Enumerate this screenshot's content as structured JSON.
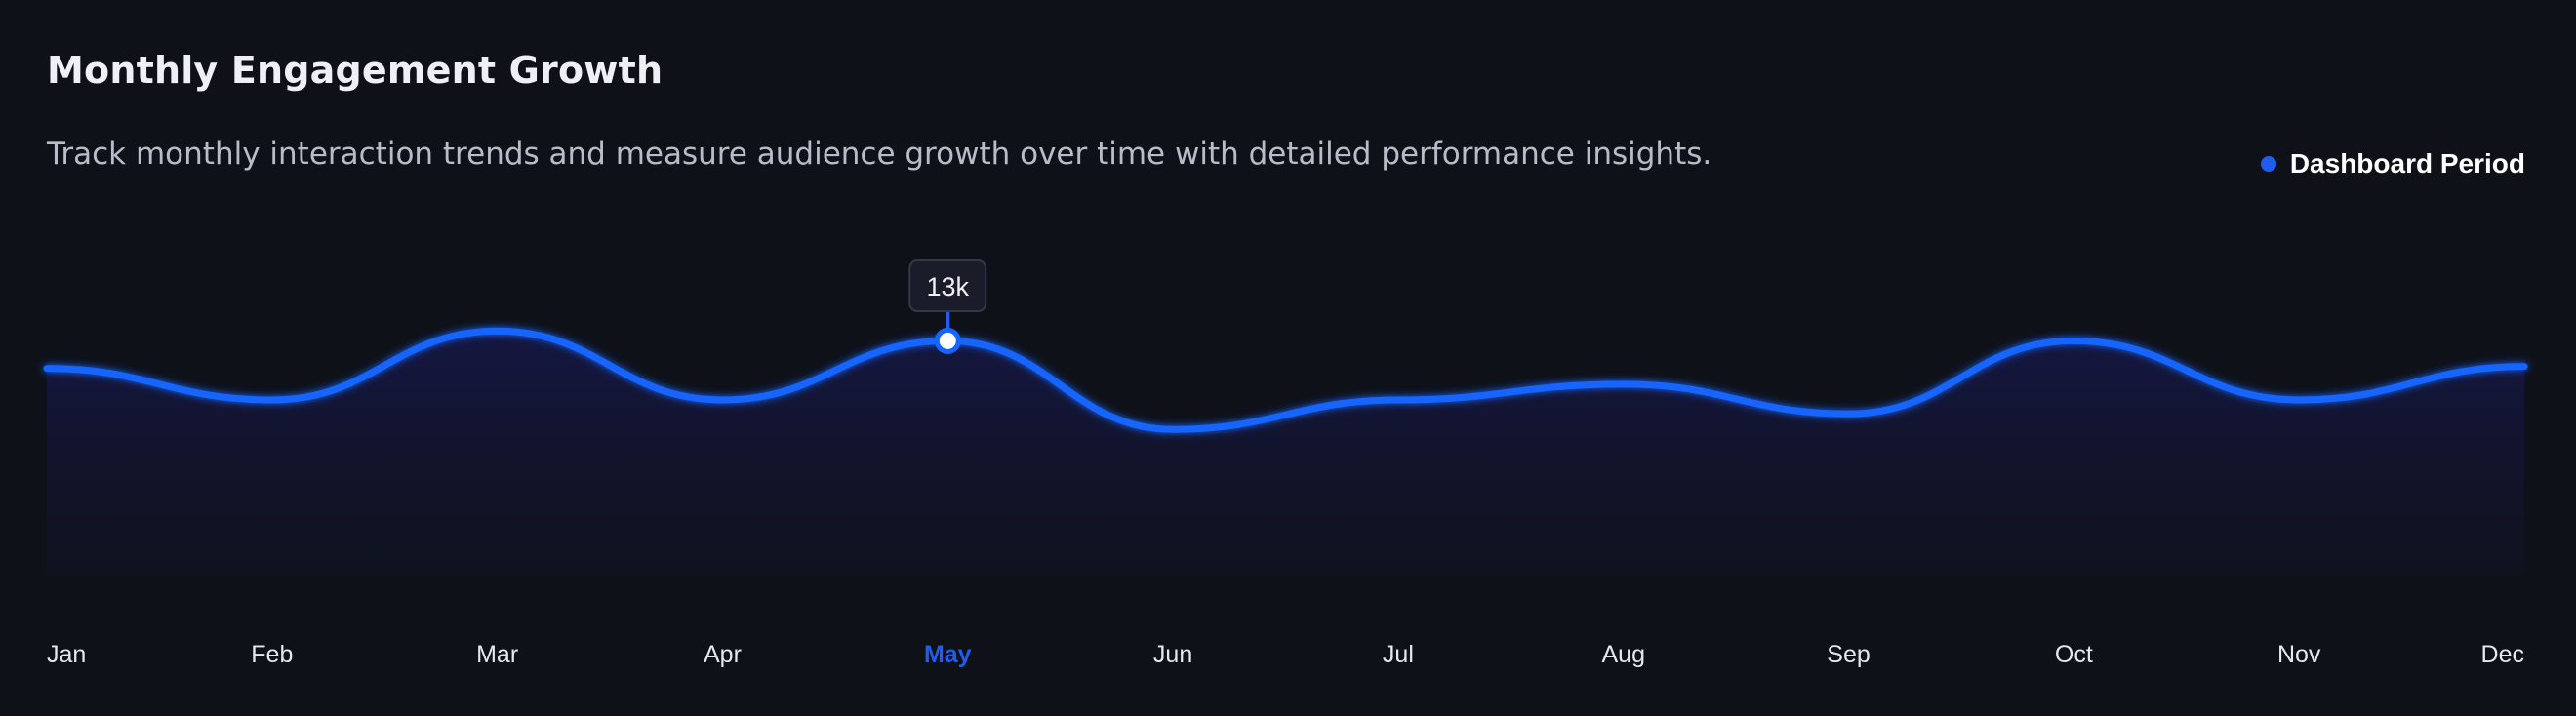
{
  "header": {
    "title": "Monthly Engagement Growth",
    "subtitle": "Track monthly interaction trends and measure audience growth over time with detailed performance insights."
  },
  "legend": {
    "label": "Dashboard Period",
    "color": "#1f5cf0"
  },
  "colors": {
    "background": "#0f1119",
    "line": "#1565ff",
    "active_tick": "#1f5cf0"
  },
  "chart_data": {
    "type": "area",
    "categories": [
      "Jan",
      "Feb",
      "Mar",
      "Apr",
      "May",
      "Jun",
      "Jul",
      "Aug",
      "Sep",
      "Oct",
      "Nov",
      "Dec"
    ],
    "series": [
      {
        "name": "Dashboard Period",
        "values": [
          11.6,
          10.0,
          13.5,
          10.0,
          13.0,
          8.5,
          10.0,
          10.8,
          9.3,
          13.0,
          10.0,
          11.7
        ]
      }
    ],
    "highlight": {
      "category": "May",
      "label": "13k"
    },
    "ylim": [
      0,
      20
    ],
    "grid": false,
    "legend_position": "top-right"
  }
}
